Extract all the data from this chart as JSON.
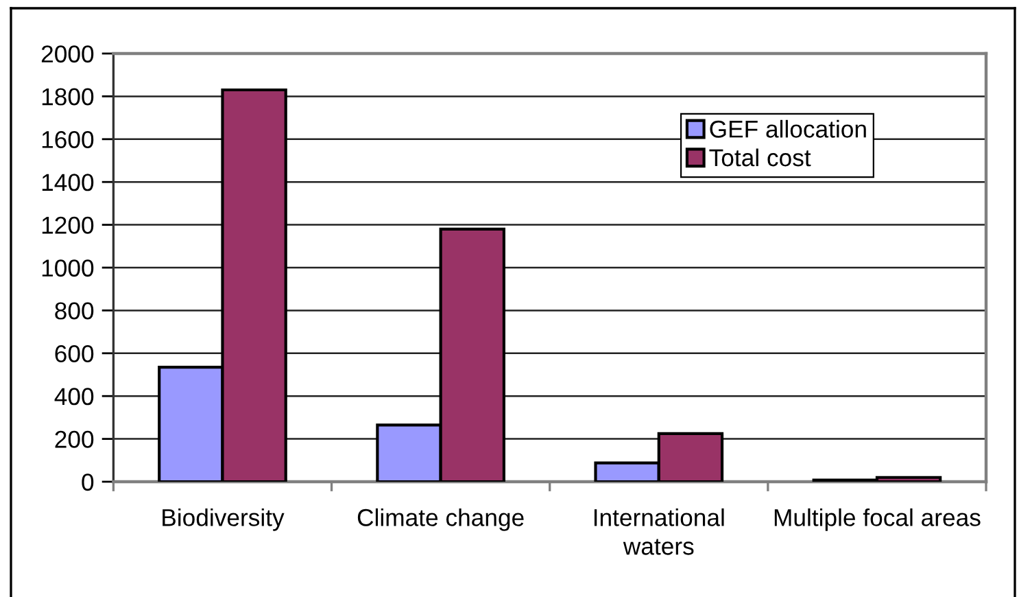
{
  "chart_data": {
    "type": "bar",
    "categories": [
      "Biodiversity",
      "Climate change",
      "International\nwaters",
      "Multiple focal areas"
    ],
    "series": [
      {
        "name": "GEF allocation",
        "color": "#9999ff",
        "values": [
          535,
          265,
          88,
          8
        ]
      },
      {
        "name": "Total cost",
        "color": "#993366",
        "values": [
          1830,
          1180,
          225,
          20
        ]
      }
    ],
    "ylim": [
      0,
      2000
    ],
    "yticks": [
      0,
      200,
      400,
      600,
      800,
      1000,
      1200,
      1400,
      1600,
      1800,
      2000
    ],
    "grid": "y",
    "legend": "top right"
  }
}
